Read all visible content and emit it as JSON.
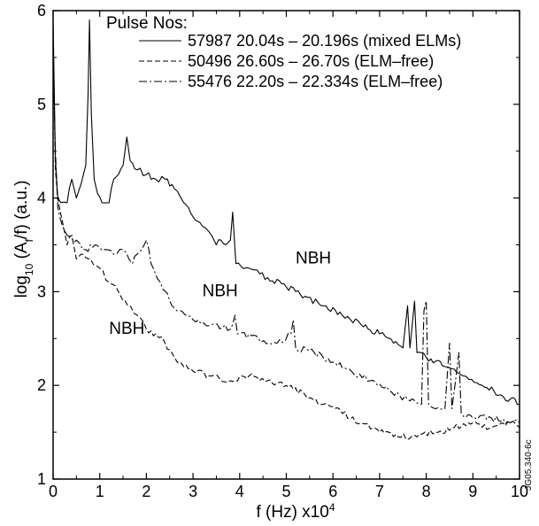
{
  "chart_data": {
    "type": "line",
    "title": "",
    "xlabel": "f (Hz) x10",
    "xlabel_sup": "4",
    "ylabel": "log",
    "ylabel_sub1": "10",
    "ylabel_mid": " (A",
    "ylabel_sub2": "f",
    "ylabel_end": "/f) (a.u.)",
    "xlim": [
      0,
      10
    ],
    "ylim": [
      1,
      6
    ],
    "x_ticks": [
      "0",
      "1",
      "2",
      "3",
      "4",
      "5",
      "6",
      "7",
      "8",
      "9",
      "10"
    ],
    "y_ticks": [
      "1",
      "2",
      "3",
      "4",
      "5",
      "6"
    ],
    "grid": false,
    "legend_title": "Pulse Nos:",
    "legend_position": "top-right",
    "watermark": "JG05.340-6c",
    "annotations": [
      {
        "text": "NBH",
        "x": 5.2,
        "y": 3.3
      },
      {
        "text": "NBH",
        "x": 3.2,
        "y": 2.95
      },
      {
        "text": "NBH",
        "x": 1.2,
        "y": 2.55
      }
    ],
    "series": [
      {
        "name": "57987 20.04s – 20.196s (mixed ELMs)",
        "dash": "solid",
        "points": [
          [
            0,
            5.9
          ],
          [
            0.05,
            4.4
          ],
          [
            0.1,
            4.0
          ],
          [
            0.3,
            3.95
          ],
          [
            0.4,
            4.2
          ],
          [
            0.5,
            4.0
          ],
          [
            0.6,
            4.15
          ],
          [
            0.7,
            4.35
          ],
          [
            0.75,
            5.1
          ],
          [
            0.78,
            5.9
          ],
          [
            0.82,
            4.9
          ],
          [
            0.88,
            4.2
          ],
          [
            0.95,
            4.05
          ],
          [
            1.05,
            3.95
          ],
          [
            1.2,
            3.95
          ],
          [
            1.3,
            4.2
          ],
          [
            1.4,
            4.25
          ],
          [
            1.5,
            4.35
          ],
          [
            1.58,
            4.65
          ],
          [
            1.65,
            4.4
          ],
          [
            1.8,
            4.3
          ],
          [
            2.0,
            4.25
          ],
          [
            2.2,
            4.2
          ],
          [
            2.4,
            4.2
          ],
          [
            2.6,
            4.1
          ],
          [
            2.8,
            3.95
          ],
          [
            3.0,
            3.8
          ],
          [
            3.2,
            3.7
          ],
          [
            3.4,
            3.6
          ],
          [
            3.5,
            3.5
          ],
          [
            3.6,
            3.55
          ],
          [
            3.7,
            3.5
          ],
          [
            3.8,
            3.55
          ],
          [
            3.85,
            3.85
          ],
          [
            3.9,
            3.45
          ],
          [
            3.92,
            3.3
          ],
          [
            4.2,
            3.25
          ],
          [
            4.6,
            3.15
          ],
          [
            5.0,
            3.05
          ],
          [
            5.4,
            2.95
          ],
          [
            5.8,
            2.85
          ],
          [
            6.2,
            2.75
          ],
          [
            6.6,
            2.65
          ],
          [
            7.0,
            2.55
          ],
          [
            7.3,
            2.45
          ],
          [
            7.5,
            2.4
          ],
          [
            7.6,
            2.85
          ],
          [
            7.65,
            2.4
          ],
          [
            7.75,
            2.9
          ],
          [
            7.8,
            2.35
          ],
          [
            8.0,
            2.3
          ],
          [
            8.4,
            2.2
          ],
          [
            8.8,
            2.1
          ],
          [
            9.2,
            2.0
          ],
          [
            9.6,
            1.9
          ],
          [
            10.0,
            1.8
          ]
        ]
      },
      {
        "name": "50496 26.60s – 26.70s (ELM–free)",
        "dash": "dashed",
        "points": [
          [
            0,
            5.8
          ],
          [
            0.05,
            4.3
          ],
          [
            0.1,
            4.0
          ],
          [
            0.2,
            3.75
          ],
          [
            0.3,
            3.5
          ],
          [
            0.4,
            3.6
          ],
          [
            0.5,
            3.35
          ],
          [
            0.6,
            3.4
          ],
          [
            0.8,
            3.35
          ],
          [
            1.0,
            3.25
          ],
          [
            1.2,
            3.1
          ],
          [
            1.4,
            3.0
          ],
          [
            1.6,
            2.85
          ],
          [
            1.8,
            2.75
          ],
          [
            2.0,
            2.6
          ],
          [
            2.2,
            2.55
          ],
          [
            2.4,
            2.45
          ],
          [
            2.6,
            2.3
          ],
          [
            2.8,
            2.2
          ],
          [
            3.0,
            2.15
          ],
          [
            3.4,
            2.1
          ],
          [
            3.8,
            2.05
          ],
          [
            4.2,
            2.1
          ],
          [
            4.6,
            2.05
          ],
          [
            5.0,
            2.0
          ],
          [
            5.4,
            1.9
          ],
          [
            5.8,
            1.8
          ],
          [
            6.2,
            1.7
          ],
          [
            6.6,
            1.6
          ],
          [
            7.0,
            1.5
          ],
          [
            7.4,
            1.45
          ],
          [
            7.8,
            1.45
          ],
          [
            8.2,
            1.5
          ],
          [
            8.6,
            1.55
          ],
          [
            9.0,
            1.6
          ],
          [
            9.4,
            1.55
          ],
          [
            9.8,
            1.6
          ],
          [
            10.0,
            1.55
          ]
        ]
      },
      {
        "name": "55476 22.20s – 22.334s (ELM–free)",
        "dash": "dashdot",
        "points": [
          [
            0,
            5.4
          ],
          [
            0.05,
            4.5
          ],
          [
            0.1,
            3.9
          ],
          [
            0.2,
            3.7
          ],
          [
            0.3,
            3.6
          ],
          [
            0.5,
            3.55
          ],
          [
            0.7,
            3.45
          ],
          [
            0.9,
            3.5
          ],
          [
            1.1,
            3.45
          ],
          [
            1.3,
            3.4
          ],
          [
            1.5,
            3.45
          ],
          [
            1.7,
            3.3
          ],
          [
            1.8,
            3.4
          ],
          [
            1.9,
            3.45
          ],
          [
            2.0,
            3.55
          ],
          [
            2.1,
            3.3
          ],
          [
            2.3,
            3.1
          ],
          [
            2.5,
            2.9
          ],
          [
            2.7,
            2.8
          ],
          [
            3.0,
            2.7
          ],
          [
            3.4,
            2.65
          ],
          [
            3.8,
            2.6
          ],
          [
            3.9,
            2.75
          ],
          [
            3.95,
            2.55
          ],
          [
            4.4,
            2.5
          ],
          [
            4.8,
            2.45
          ],
          [
            5.1,
            2.55
          ],
          [
            5.15,
            2.7
          ],
          [
            5.2,
            2.4
          ],
          [
            5.6,
            2.35
          ],
          [
            6.0,
            2.25
          ],
          [
            6.4,
            2.15
          ],
          [
            6.8,
            2.05
          ],
          [
            7.2,
            1.95
          ],
          [
            7.6,
            1.85
          ],
          [
            7.9,
            1.8
          ],
          [
            7.95,
            2.8
          ],
          [
            8.0,
            2.9
          ],
          [
            8.05,
            1.8
          ],
          [
            8.2,
            1.75
          ],
          [
            8.4,
            1.75
          ],
          [
            8.5,
            2.45
          ],
          [
            8.55,
            1.75
          ],
          [
            8.7,
            2.35
          ],
          [
            8.75,
            1.7
          ],
          [
            9.0,
            1.65
          ],
          [
            9.4,
            1.65
          ],
          [
            9.8,
            1.6
          ],
          [
            10.0,
            1.6
          ]
        ]
      }
    ]
  }
}
